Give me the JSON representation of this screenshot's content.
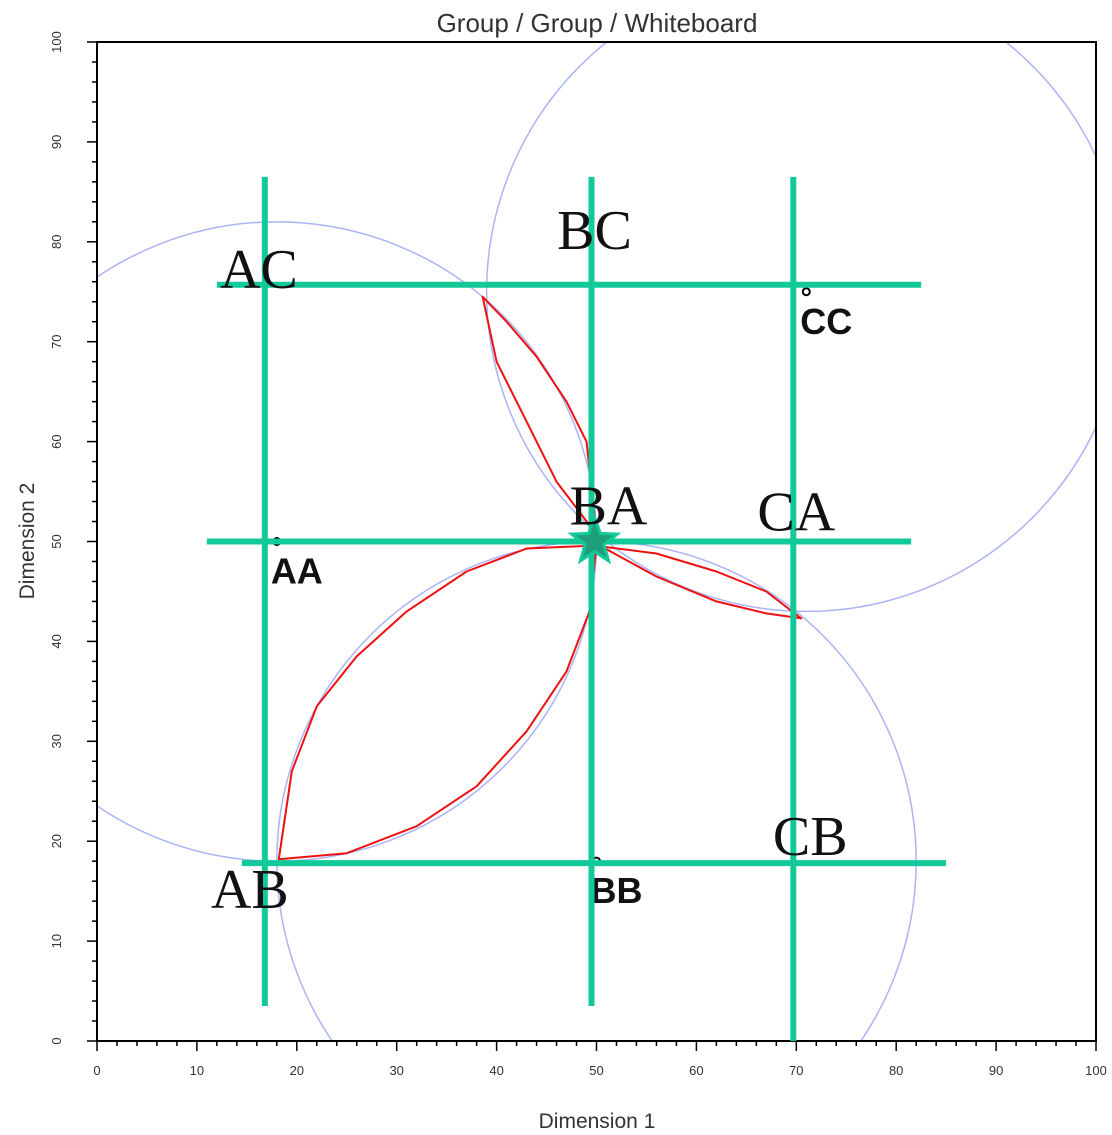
{
  "chart_data": {
    "type": "scatter",
    "title": "Group / Group / Whiteboard",
    "xlabel": "Dimension 1",
    "ylabel": "Dimension 2",
    "xlim": [
      0,
      100
    ],
    "ylim": [
      0,
      100
    ],
    "xticks": [
      "0",
      "10",
      "20",
      "30",
      "40",
      "50",
      "60",
      "70",
      "80",
      "90",
      "100"
    ],
    "yticks": [
      "0",
      "10",
      "20",
      "30",
      "40",
      "50",
      "60",
      "70",
      "80",
      "90",
      "100"
    ],
    "points": [
      {
        "label": "AA",
        "x": 18,
        "y": 50
      },
      {
        "label": "BB",
        "x": 50,
        "y": 18
      },
      {
        "label": "CC",
        "x": 71,
        "y": 75
      }
    ],
    "circles": [
      {
        "cx": 18,
        "cy": 50,
        "r": 32
      },
      {
        "cx": 50,
        "cy": 18,
        "r": 32
      },
      {
        "cx": 71,
        "cy": 75,
        "r": 32
      }
    ],
    "vertical_lines": [
      {
        "x": 16.8,
        "y0": 3.5,
        "y1": 86.5
      },
      {
        "x": 49.5,
        "y0": 3.5,
        "y1": 86.5
      },
      {
        "x": 69.7,
        "y0": 0,
        "y1": 86.5
      }
    ],
    "horizontal_lines": [
      {
        "y": 75.7,
        "x0": 12,
        "x1": 82.5
      },
      {
        "y": 50,
        "x0": 11,
        "x1": 81.5
      },
      {
        "y": 17.8,
        "x0": 14.5,
        "x1": 85
      }
    ],
    "grid_labels": [
      {
        "label": "AC",
        "x": 16.2,
        "y": 75.4
      },
      {
        "label": "BC",
        "x": 49.8,
        "y": 79.3
      },
      {
        "label": "BA",
        "x": 51.2,
        "y": 51.7
      },
      {
        "label": "CA",
        "x": 70,
        "y": 51.1
      },
      {
        "label": "AB",
        "x": 15.3,
        "y": 13.3
      },
      {
        "label": "CB",
        "x": 71.4,
        "y": 18.6
      }
    ],
    "star": {
      "x": 49.8,
      "y": 50
    },
    "red_regions": [
      [
        [
          18.2,
          18.2
        ],
        [
          19.5,
          27
        ],
        [
          22,
          33.5
        ],
        [
          26,
          38.5
        ],
        [
          31,
          43
        ],
        [
          37,
          47
        ],
        [
          43,
          49.3
        ],
        [
          50,
          49.6
        ],
        [
          49.3,
          43
        ],
        [
          47,
          37
        ],
        [
          43,
          31
        ],
        [
          38,
          25.5
        ],
        [
          32,
          21.5
        ],
        [
          25,
          18.8
        ],
        [
          18.2,
          18.2
        ]
      ],
      [
        [
          38.6,
          74.5
        ],
        [
          40,
          68
        ],
        [
          43,
          62
        ],
        [
          46,
          56
        ],
        [
          50,
          50.7
        ],
        [
          49,
          60
        ],
        [
          47,
          64
        ],
        [
          44,
          68.5
        ],
        [
          41,
          72
        ],
        [
          38.6,
          74.5
        ]
      ],
      [
        [
          50.5,
          49.5
        ],
        [
          56,
          46.5
        ],
        [
          62,
          44
        ],
        [
          67,
          42.8
        ],
        [
          70.5,
          42.3
        ],
        [
          67,
          45
        ],
        [
          62,
          47
        ],
        [
          56,
          48.8
        ],
        [
          50.5,
          49.5
        ]
      ]
    ],
    "colors": {
      "green": "#12c99a",
      "red": "#ee1111",
      "circle": "#aab4f6",
      "star_fill": "#1f9e7a"
    },
    "grid": false
  }
}
